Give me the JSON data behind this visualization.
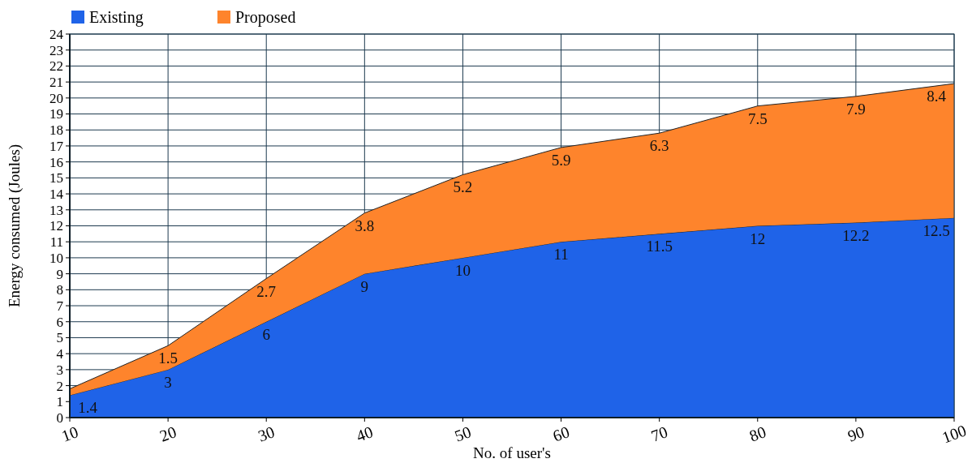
{
  "chart_data": {
    "type": "area",
    "stacked": true,
    "xlabel": "No. of user's",
    "ylabel": "Energy consumed (Joules)",
    "x": [
      10,
      20,
      30,
      40,
      50,
      60,
      70,
      80,
      90,
      100
    ],
    "xlim": [
      10,
      100
    ],
    "xticks": [
      10,
      20,
      30,
      40,
      50,
      60,
      70,
      80,
      90,
      100
    ],
    "ylim": [
      0,
      24
    ],
    "yticks": [
      0,
      1,
      2,
      3,
      4,
      5,
      6,
      7,
      8,
      9,
      10,
      11,
      12,
      13,
      14,
      15,
      16,
      17,
      18,
      19,
      20,
      21,
      22,
      23,
      24
    ],
    "grid": true,
    "legend": "top left",
    "series": [
      {
        "name": "Existing",
        "color": "#1f63e8",
        "values": [
          1.4,
          3,
          6,
          9,
          10,
          11,
          11.5,
          12,
          12.2,
          12.5
        ],
        "value_labels": [
          "1.4",
          "3",
          "6",
          "9",
          "10",
          "11",
          "11.5",
          "12",
          "12.2",
          "12.5"
        ]
      },
      {
        "name": "Proposed",
        "color": "#fe842c",
        "values": [
          0.4,
          1.5,
          2.7,
          3.8,
          5.2,
          5.9,
          6.3,
          7.5,
          7.9,
          8.4
        ],
        "value_labels": [
          null,
          "1.5",
          "2.7",
          "3.8",
          "5.2",
          "5.9",
          "6.3",
          "7.5",
          "7.9",
          "8.4"
        ]
      }
    ]
  }
}
